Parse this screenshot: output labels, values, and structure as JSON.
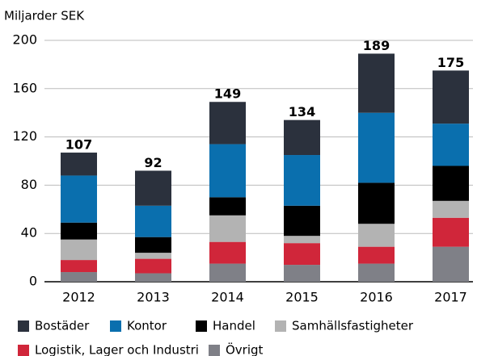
{
  "chart_data": {
    "type": "stacked_bar",
    "subtitle": "Miljarder SEK",
    "categories": [
      "2012",
      "2013",
      "2014",
      "2015",
      "2016",
      "2017"
    ],
    "series": [
      {
        "name": "Övrigt",
        "color": "#7f8087",
        "values": [
          8,
          7,
          15,
          14,
          15,
          29
        ]
      },
      {
        "name": "Logistik, Lager och Industri",
        "color": "#d0263a",
        "values": [
          10,
          12,
          18,
          18,
          14,
          24
        ]
      },
      {
        "name": "Samhällsfastigheter",
        "color": "#b3b3b3",
        "values": [
          17,
          5,
          22,
          6,
          19,
          14
        ]
      },
      {
        "name": "Handel",
        "color": "#000000",
        "values": [
          14,
          13,
          15,
          25,
          34,
          29
        ]
      },
      {
        "name": "Kontor",
        "color": "#0a6fae",
        "values": [
          39,
          26,
          44,
          42,
          58,
          35
        ]
      },
      {
        "name": "Bostäder",
        "color": "#2b313d",
        "values": [
          19,
          29,
          35,
          29,
          49,
          44
        ]
      }
    ],
    "totals": [
      107,
      92,
      149,
      134,
      189,
      175
    ],
    "ylim": [
      0,
      200
    ],
    "yticks": [
      0,
      40,
      80,
      120,
      160,
      200
    ],
    "grid": true,
    "legend_order": [
      5,
      4,
      3,
      2,
      1,
      0
    ]
  }
}
